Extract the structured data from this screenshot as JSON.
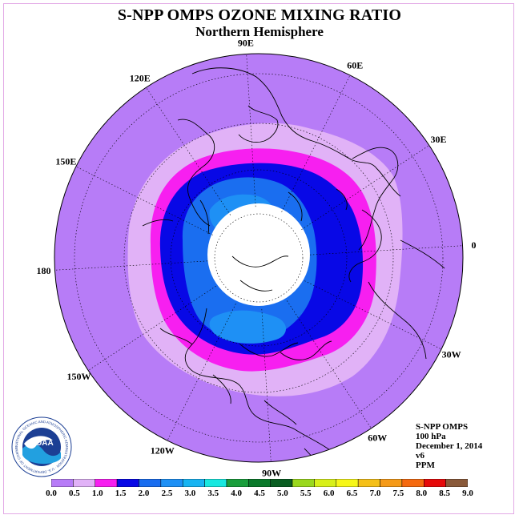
{
  "title": "S-NPP OMPS OZONE MIXING RATIO",
  "subtitle": "Northern Hemisphere",
  "longitude_labels": [
    "90E",
    "60E",
    "30E",
    "0",
    "30W",
    "60W",
    "90W",
    "120W",
    "150W",
    "180",
    "150E",
    "120E"
  ],
  "info": {
    "instrument": "S-NPP OMPS",
    "level": "100 hPa",
    "date": "December 1, 2014",
    "version": "v6",
    "units": "PPM"
  },
  "logo": {
    "name": "NOAA",
    "ring_text": "NATIONAL OCEANIC AND ATMOSPHERIC ADMINISTRATION · U.S. DEPARTMENT OF COMMERCE"
  },
  "colorbar": {
    "ticks": [
      "0.0",
      "0.5",
      "1.0",
      "1.5",
      "2.0",
      "2.5",
      "3.0",
      "3.5",
      "4.0",
      "4.5",
      "5.0",
      "5.5",
      "6.0",
      "6.5",
      "7.0",
      "7.5",
      "8.0",
      "8.5",
      "9.0"
    ],
    "colors": [
      "#b77cf7",
      "#e1b2f7",
      "#f71ff0",
      "#0808e6",
      "#1a6ef0",
      "#1e90f5",
      "#18b4f2",
      "#18e8e0",
      "#1a9e3c",
      "#0b7a2b",
      "#0a5e22",
      "#9ad81e",
      "#d8f01a",
      "#f7f718",
      "#f5c018",
      "#f59a18",
      "#f56a10",
      "#e60a0a",
      "#8a5a3a"
    ]
  },
  "field": {
    "outer_value_class": "0.0-0.5",
    "pole_gap": "no data"
  }
}
